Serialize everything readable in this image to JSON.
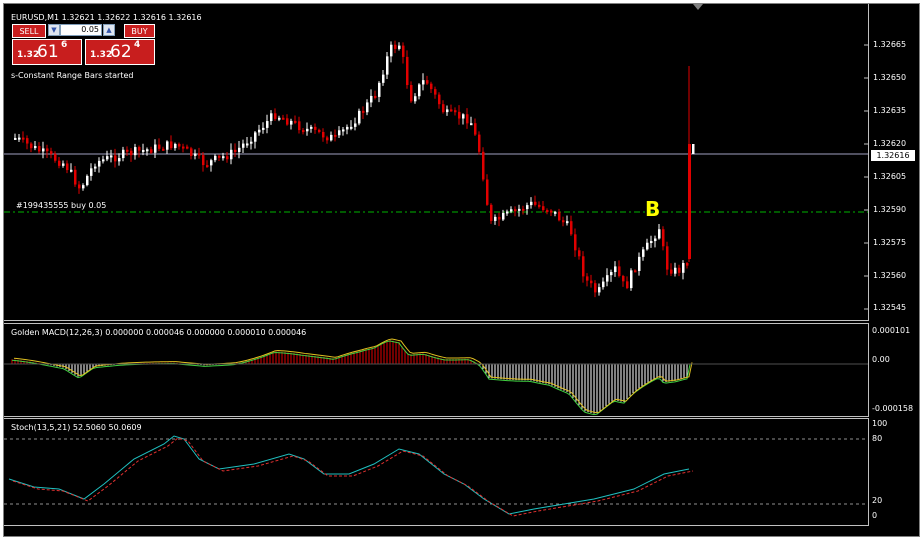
{
  "chart": {
    "symbol_header": "EURUSD,M1  1.32621 1.32622 1.32616 1.32616",
    "indicator_message": "s-Constant Range Bars started",
    "order_line_label": "#199435555 buy 0.05",
    "current_price_label": "1.32616",
    "signal_label": "B",
    "price_axis": [
      "1.32665",
      "1.32650",
      "1.32635",
      "1.32620",
      "1.32605",
      "1.32590",
      "1.32575",
      "1.32560",
      "1.32545"
    ],
    "colors": {
      "bull": "#ffffff",
      "bear": "#e00000",
      "order_line": "#00b400",
      "bid_line": "#a0a0c0",
      "signal": "#ffff00"
    }
  },
  "one_click": {
    "sell_label": "SELL",
    "buy_label": "BUY",
    "lot_value": "0.05",
    "sell_price_small": "1.32",
    "sell_price_big": "61",
    "sell_price_sup": "6",
    "buy_price_small": "1.32",
    "buy_price_big": "62",
    "buy_price_sup": "4"
  },
  "macd": {
    "label": "Golden MACD(12,26,3) 0.000000 0.000046 0.000000 0.000010 0.000046",
    "axis": [
      "0.000101",
      "0.00",
      "-0.000158"
    ]
  },
  "stoch": {
    "label": "Stoch(13,5,21) 52.5060 50.0609",
    "axis": [
      "100",
      "80",
      "20",
      "0"
    ]
  }
}
